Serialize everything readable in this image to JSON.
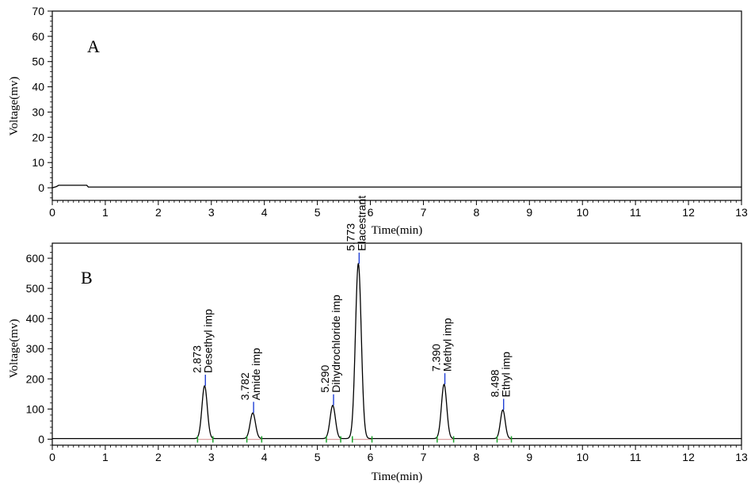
{
  "chart_data": [
    {
      "type": "line",
      "panel_label": "A",
      "xlabel": "Time(min)",
      "ylabel": "Voltage(mv)",
      "xlim": [
        0,
        13
      ],
      "ylim": [
        -5,
        70
      ],
      "xticks": [
        "0",
        "1",
        "2",
        "3",
        "4",
        "5",
        "6",
        "7",
        "8",
        "9",
        "10",
        "11",
        "12",
        "13"
      ],
      "yticks": [
        "0",
        "10",
        "20",
        "30",
        "40",
        "50",
        "60",
        "70"
      ],
      "grid": false,
      "series": [
        {
          "x": [
            0,
            0.08,
            0.12,
            0.65,
            0.68,
            13
          ],
          "y": [
            0,
            0.5,
            1,
            1,
            0.3,
            0.3
          ]
        }
      ]
    },
    {
      "type": "line",
      "panel_label": "B",
      "xlabel": "Time(min)",
      "ylabel": "Voltage(mv)",
      "xlim": [
        0,
        13
      ],
      "ylim": [
        -20,
        650
      ],
      "xticks": [
        "0",
        "1",
        "2",
        "3",
        "4",
        "5",
        "6",
        "7",
        "8",
        "9",
        "10",
        "11",
        "12",
        "13"
      ],
      "yticks": [
        "0",
        "100",
        "200",
        "300",
        "400",
        "500",
        "600"
      ],
      "grid": false,
      "baseline": 2,
      "peaks": [
        {
          "retention_time": 2.873,
          "rt_label": "2.873",
          "name": "Desethyl imp",
          "height": 175,
          "width": 0.05,
          "start": 2.74,
          "end": 3.03
        },
        {
          "retention_time": 3.782,
          "rt_label": "3.782",
          "name": "Amide imp",
          "height": 85,
          "width": 0.05,
          "start": 3.67,
          "end": 3.95
        },
        {
          "retention_time": 5.29,
          "rt_label": "5.290",
          "name": "Dihydrochloride imp",
          "height": 110,
          "width": 0.05,
          "start": 5.17,
          "end": 5.44
        },
        {
          "retention_time": 5.773,
          "rt_label": "5.773",
          "name": "Elacestrant",
          "height": 580,
          "width": 0.055,
          "start": 5.66,
          "end": 6.03
        },
        {
          "retention_time": 7.39,
          "rt_label": "7.390",
          "name": "Methyl imp",
          "height": 180,
          "width": 0.05,
          "start": 7.26,
          "end": 7.57
        },
        {
          "retention_time": 8.498,
          "rt_label": "8.498",
          "name": "Ethyl imp",
          "height": 95,
          "width": 0.045,
          "start": 8.39,
          "end": 8.66
        }
      ]
    }
  ],
  "colors": {
    "trace": "#000000",
    "peak_apex_marker": "#1f3fd6",
    "peak_boundary_marker": "#1aa32a",
    "integration_baseline": "#d9a0a0"
  }
}
